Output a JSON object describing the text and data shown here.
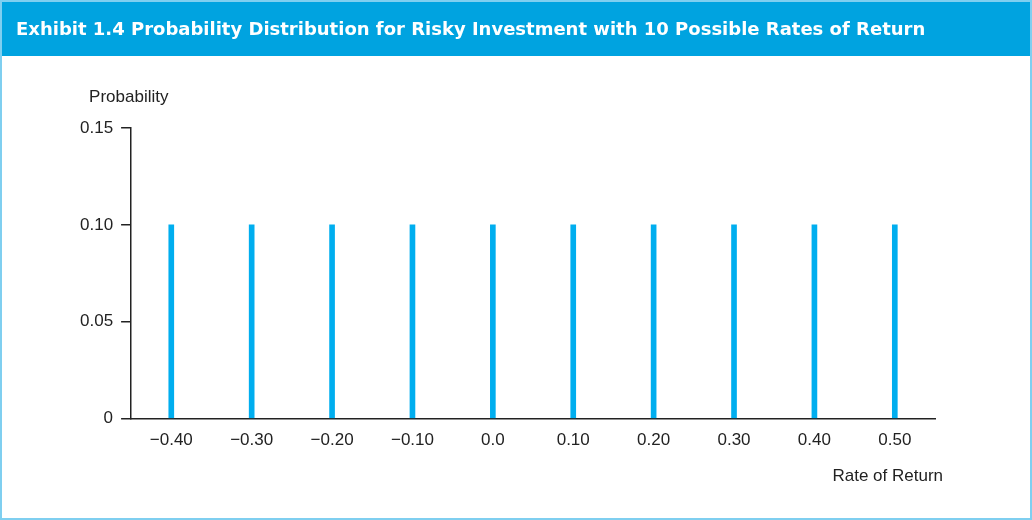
{
  "chart_data": {
    "type": "bar",
    "title": "Exhibit 1.4 Probability Distribution for Risky Investment with 10 Possible Rates of Return",
    "xlabel": "Rate of Return",
    "ylabel": "Probability",
    "categories": [
      "−0.40",
      "−0.30",
      "−0.20",
      "−0.10",
      "0.0",
      "0.10",
      "0.20",
      "0.30",
      "0.40",
      "0.50"
    ],
    "values": [
      0.1,
      0.1,
      0.1,
      0.1,
      0.1,
      0.1,
      0.1,
      0.1,
      0.1,
      0.1
    ],
    "color": "#00aeef",
    "ylim": [
      0,
      0.15
    ],
    "yticks": [
      0,
      {
        "value": 0.05,
        "label": "0.05"
      },
      {
        "value": 0.1,
        "label": "0.10"
      },
      {
        "value": 0.15,
        "label": "0.15"
      }
    ],
    "grid": false,
    "legend": false
  }
}
